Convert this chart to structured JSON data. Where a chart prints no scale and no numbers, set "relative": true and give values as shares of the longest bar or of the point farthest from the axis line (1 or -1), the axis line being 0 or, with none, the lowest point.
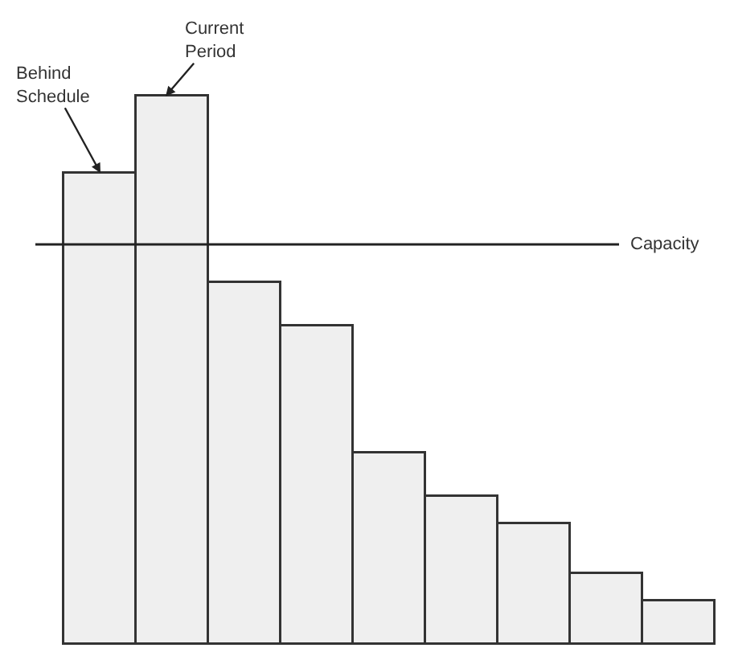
{
  "chart_data": {
    "type": "bar",
    "relative": true,
    "categories": [
      null,
      null,
      null,
      null,
      null,
      null,
      null,
      null,
      null
    ],
    "values": [
      0.86,
      1,
      0.66,
      0.58,
      0.35,
      0.27,
      0.22,
      0.13,
      0.08
    ],
    "color": "#efefef",
    "ref_lines": [
      {
        "axis": "y",
        "value": 0.73,
        "label": "Capacity",
        "color": "#222222"
      }
    ],
    "annotations": [
      "Behind Schedule",
      "Current Period"
    ],
    "legend": false
  }
}
